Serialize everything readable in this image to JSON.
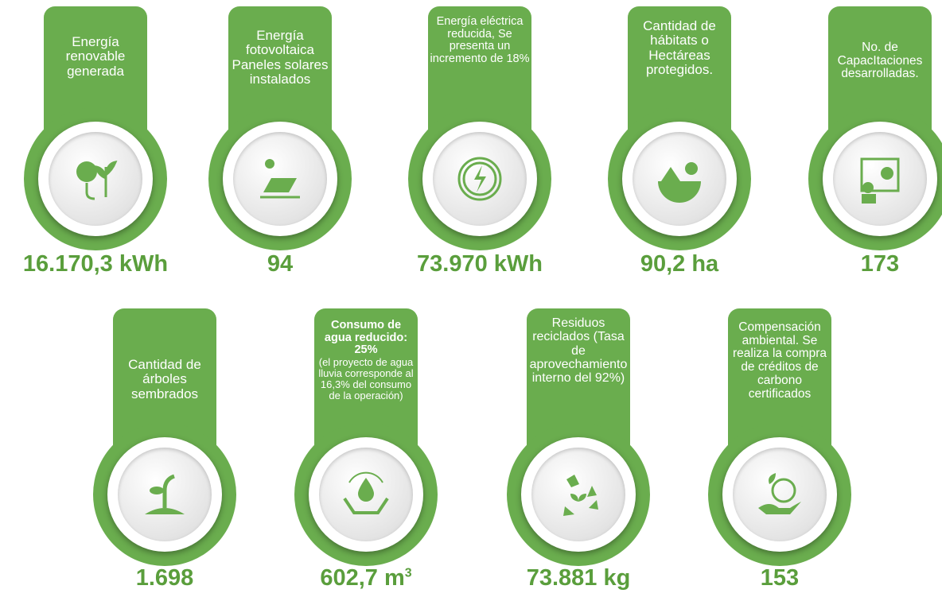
{
  "cards": [
    {
      "label": [
        {
          "text": "Energía renovable generada"
        }
      ],
      "value": "16.170,3 kWh"
    },
    {
      "label": [
        {
          "text": "Energía fotovoltaica Paneles solares instalados"
        }
      ],
      "value": "94"
    },
    {
      "label": [
        {
          "text": "Energía eléctrica reducida, Se presenta un incremento de 18%"
        }
      ],
      "value": "73.970 kWh"
    },
    {
      "label": [
        {
          "text": "Cantidad de hábitats o Hectáreas protegidos."
        }
      ],
      "value": "90,2 ha"
    },
    {
      "label": [
        {
          "text": "No. de CapacItaciones desarrolladas."
        }
      ],
      "value": "173"
    },
    {
      "label": [
        {
          "text": "Cantidad de árboles sembrados"
        }
      ],
      "value": "1.698"
    },
    {
      "label": [
        {
          "text": "Consumo de agua reducido:",
          "bold": true
        },
        {
          "text": "25%",
          "bold": true
        },
        {
          "text": "(el proyecto de agua lluvia corresponde al 16,3% del consumo de la operación)"
        }
      ],
      "value": "602,7 m",
      "value_superscript": "3"
    },
    {
      "label": [
        {
          "text": "Residuos reciclados (Tasa de aprovechamiento interno del 92%)"
        }
      ],
      "value": "73.881 kg"
    },
    {
      "label": [
        {
          "text": "Compensación ambiental. Se realiza la compra de créditos de carbono certificados"
        }
      ],
      "value": "153"
    }
  ]
}
